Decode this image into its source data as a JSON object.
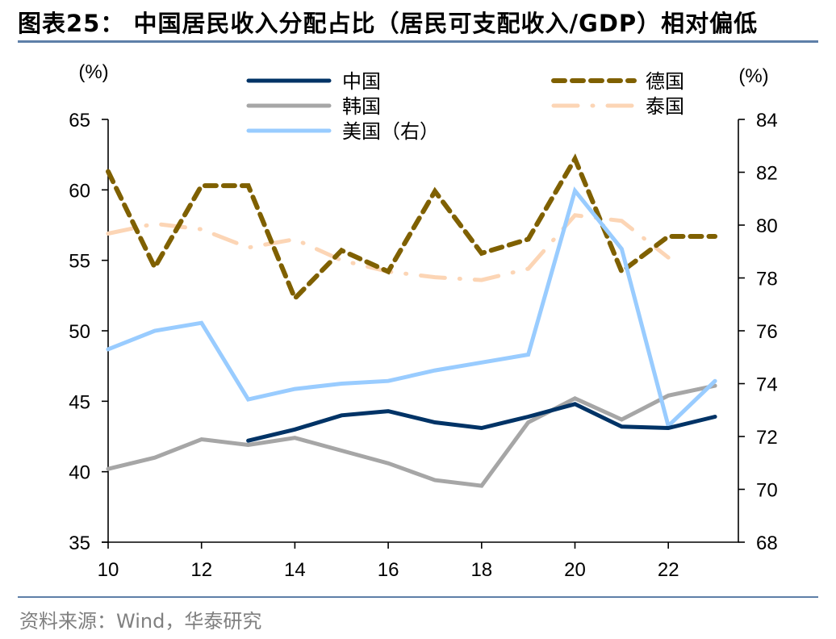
{
  "header": {
    "title": "图表25：  中国居民收入分配占比（居民可支配收入/GDP）相对偏低"
  },
  "footer": {
    "source": "资料来源：Wind，华泰研究"
  },
  "chart_data": {
    "type": "line",
    "title": "中国居民收入分配占比（居民可支配收入/GDP）相对偏低",
    "xlabel": "",
    "ylabel_left": "(%)",
    "ylabel_right": "(%)",
    "x": [
      10,
      11,
      12,
      13,
      14,
      15,
      16,
      17,
      18,
      19,
      20,
      21,
      22,
      23
    ],
    "x_ticks": [
      "10",
      "12",
      "14",
      "16",
      "18",
      "20",
      "22"
    ],
    "x_tick_values": [
      10,
      12,
      14,
      16,
      18,
      20,
      22
    ],
    "xlim": [
      10,
      23.5
    ],
    "ylim_left": [
      35,
      65
    ],
    "y_ticks_left": [
      "35",
      "40",
      "45",
      "50",
      "55",
      "60",
      "65"
    ],
    "ylim_right": [
      68,
      84
    ],
    "y_ticks_right": [
      "68",
      "70",
      "72",
      "74",
      "76",
      "78",
      "80",
      "82",
      "84"
    ],
    "grid": false,
    "legend_position": "top",
    "series": [
      {
        "name": "中国",
        "axis": "left",
        "color": "#003366",
        "style": "solid",
        "values": [
          null,
          null,
          null,
          42.2,
          43.0,
          44.0,
          44.3,
          43.5,
          43.1,
          43.9,
          44.8,
          43.2,
          43.1,
          43.9
        ]
      },
      {
        "name": "韩国",
        "axis": "left",
        "color": "#a6a6a6",
        "style": "solid",
        "values": [
          40.2,
          41.0,
          42.3,
          41.9,
          42.4,
          41.5,
          40.6,
          39.4,
          39.0,
          43.5,
          45.2,
          43.7,
          45.4,
          46.1
        ]
      },
      {
        "name": "美国（右）",
        "axis": "right",
        "color": "#99ccff",
        "style": "solid",
        "values": [
          75.3,
          76.0,
          76.3,
          73.4,
          73.8,
          74.0,
          74.1,
          74.5,
          74.8,
          75.1,
          81.3,
          79.1,
          72.4,
          74.1
        ]
      },
      {
        "name": "德国",
        "axis": "left",
        "color": "#7f6000",
        "style": "dash",
        "values": [
          61.3,
          54.5,
          60.3,
          60.3,
          52.3,
          55.7,
          54.2,
          59.9,
          55.5,
          56.5,
          62.2,
          54.2,
          56.7,
          56.7
        ]
      },
      {
        "name": "泰国",
        "axis": "left",
        "color": "#fcd5b5",
        "style": "dashdot",
        "values": [
          56.9,
          57.6,
          57.2,
          55.9,
          56.5,
          55.0,
          54.2,
          53.8,
          53.6,
          54.4,
          58.2,
          57.8,
          55.2,
          null
        ]
      }
    ]
  }
}
